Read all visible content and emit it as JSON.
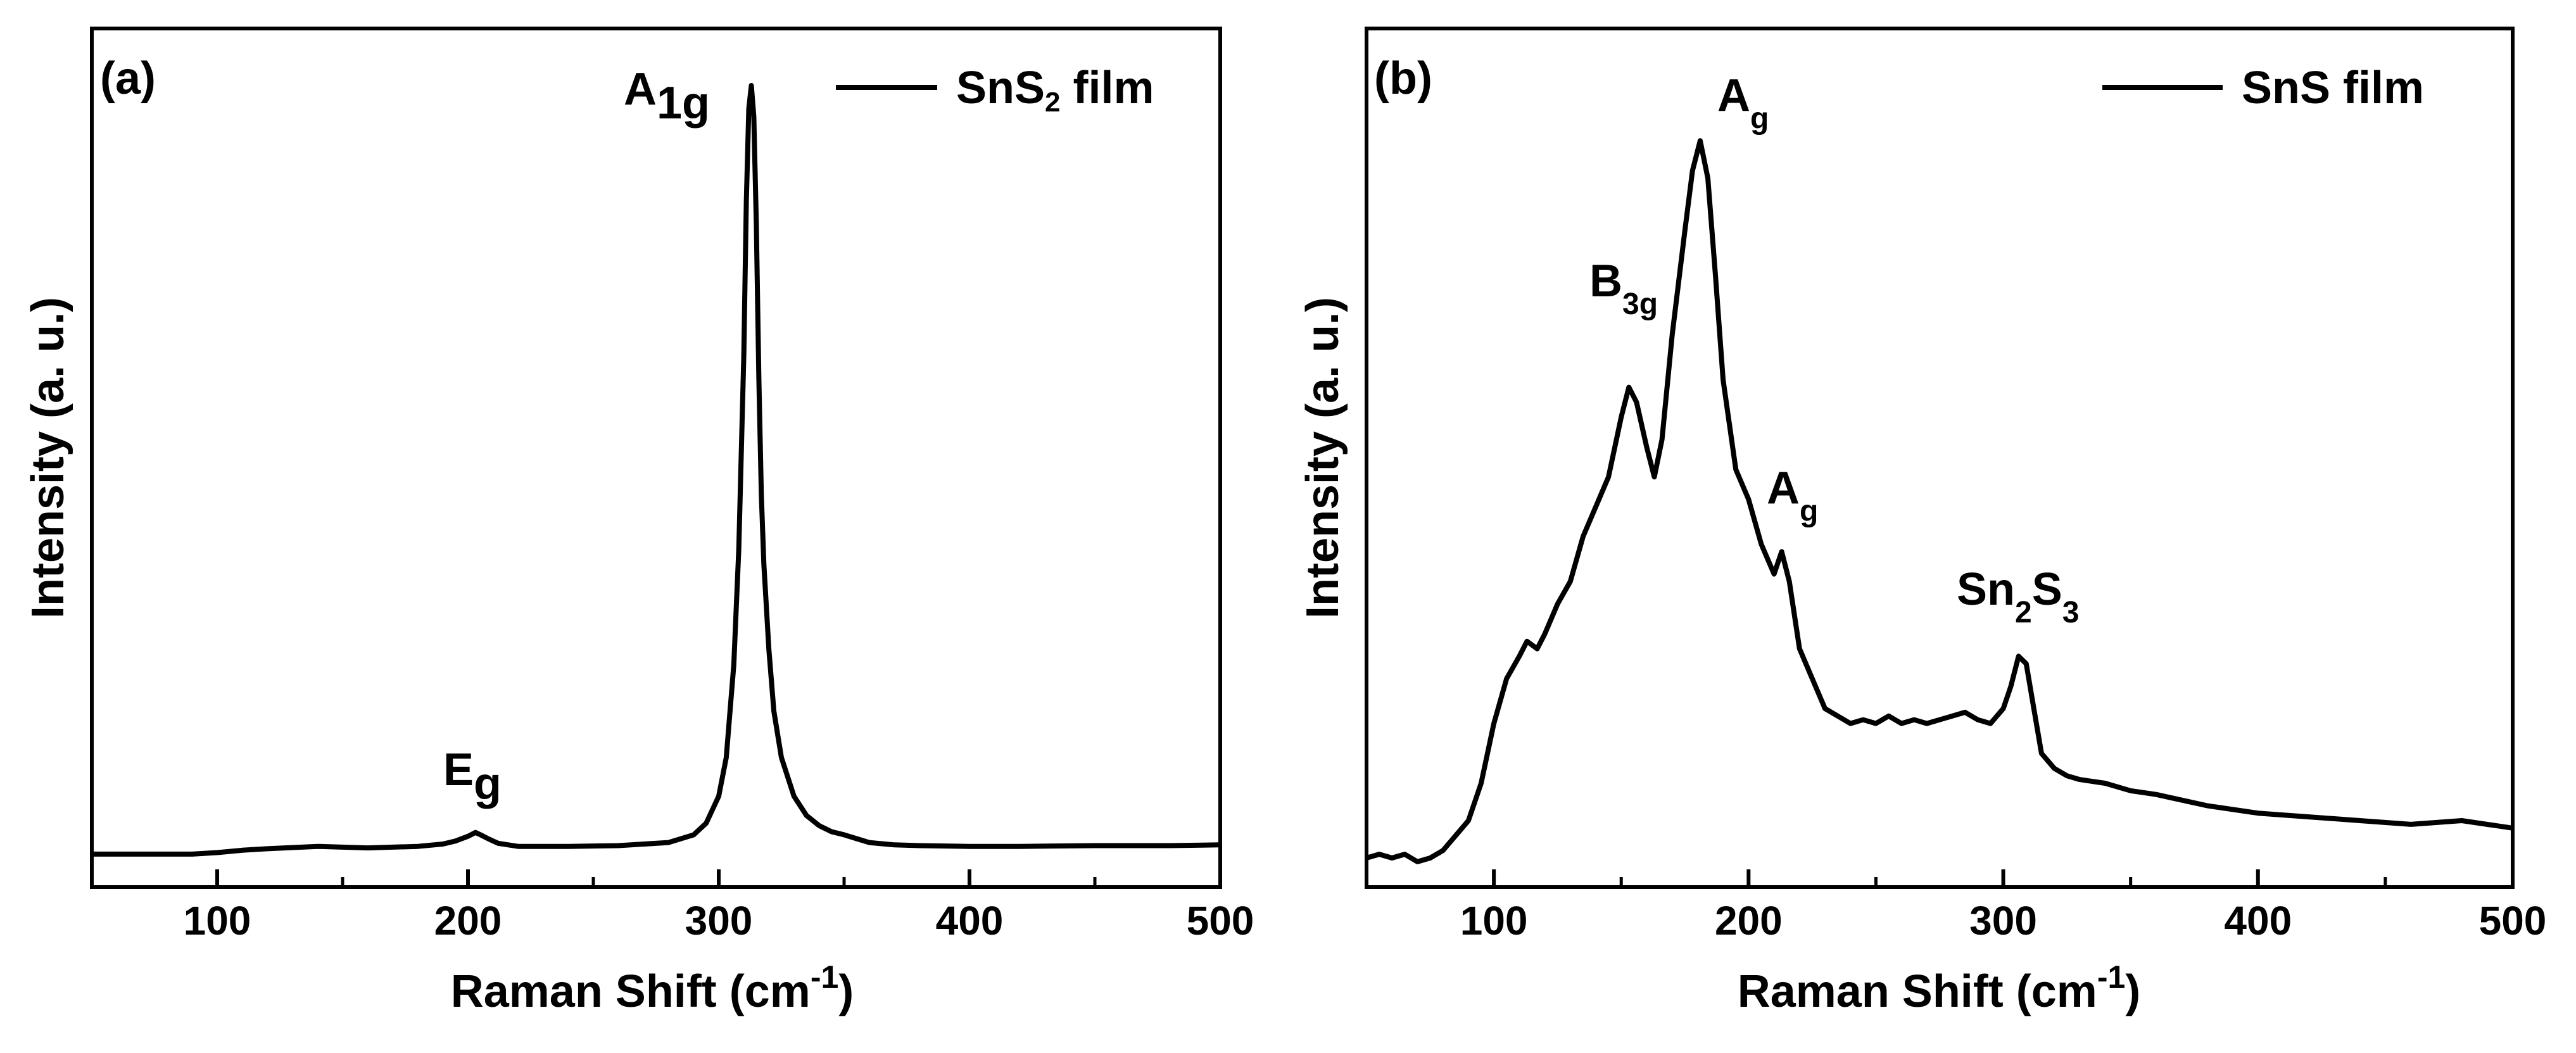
{
  "chart_data": [
    {
      "type": "line",
      "panel_label": "(a)",
      "xlabel": {
        "main": "Raman Shift (cm",
        "sup": "-1",
        "close": ")"
      },
      "ylabel": "Intensity (a. u.)",
      "xlim": [
        50,
        500
      ],
      "ylim": [
        0,
        100
      ],
      "xticks": [
        100,
        200,
        300,
        400,
        500
      ],
      "legend": {
        "position": "top-right",
        "label": {
          "main": "SnS",
          "sub": "2",
          "rest": " film"
        }
      },
      "series": [
        {
          "name": "SnS2 film",
          "x": [
            50,
            90,
            100,
            110,
            120,
            140,
            160,
            180,
            190,
            195,
            200,
            203,
            205,
            208,
            212,
            220,
            240,
            260,
            280,
            290,
            295,
            300,
            303,
            306,
            308,
            310,
            311,
            312,
            313,
            314,
            315,
            316,
            317,
            318,
            320,
            322,
            325,
            330,
            335,
            340,
            345,
            350,
            355,
            360,
            370,
            380,
            400,
            420,
            450,
            480,
            500
          ],
          "y": [
            0.5,
            0.5,
            0.7,
            1.0,
            1.2,
            1.5,
            1.3,
            1.5,
            1.8,
            2.2,
            2.8,
            3.3,
            3.0,
            2.5,
            1.9,
            1.5,
            1.5,
            1.6,
            2.0,
            3.0,
            4.5,
            8.0,
            13,
            25,
            40,
            65,
            85,
            97,
            100,
            96,
            82,
            62,
            47,
            38,
            27,
            19,
            13,
            8.0,
            5.5,
            4.2,
            3.4,
            3.0,
            2.5,
            2.0,
            1.7,
            1.6,
            1.5,
            1.5,
            1.6,
            1.6,
            1.7
          ]
        }
      ],
      "annotations": [
        {
          "main": "A",
          "sub": "1g",
          "x": 312,
          "y": 100
        },
        {
          "main": "E",
          "sub": "g",
          "x": 204,
          "y": 3.3
        }
      ]
    },
    {
      "type": "line",
      "panel_label": "(b)",
      "xlabel": {
        "main": "Raman Shift (cm",
        "sup": "-1",
        "close": ")"
      },
      "ylabel": "Intensity (a. u.)",
      "xlim": [
        50,
        500
      ],
      "ylim": [
        0,
        100
      ],
      "xticks": [
        100,
        200,
        300,
        400,
        500
      ],
      "legend": {
        "position": "top-right",
        "label": {
          "main": "SnS film",
          "sub": "",
          "rest": ""
        }
      },
      "series": [
        {
          "name": "SnS film",
          "x": [
            50,
            55,
            60,
            65,
            70,
            75,
            80,
            85,
            90,
            95,
            100,
            105,
            110,
            113,
            117,
            120,
            125,
            130,
            135,
            140,
            145,
            150,
            153,
            156,
            160,
            163,
            166,
            170,
            175,
            178,
            181,
            184,
            187,
            190,
            195,
            200,
            205,
            210,
            213,
            216,
            220,
            225,
            230,
            235,
            240,
            245,
            250,
            255,
            260,
            265,
            270,
            275,
            280,
            285,
            290,
            295,
            300,
            303,
            306,
            309,
            312,
            315,
            320,
            325,
            330,
            340,
            350,
            360,
            380,
            400,
            420,
            440,
            460,
            480,
            500
          ],
          "y": [
            0,
            0.5,
            0,
            0.5,
            -0.5,
            0,
            1,
            3,
            5,
            10,
            18,
            24,
            27,
            29,
            28,
            30,
            34,
            37,
            43,
            47,
            51,
            59,
            63,
            61,
            55,
            51,
            56,
            70,
            84,
            92,
            96,
            91,
            78,
            64,
            52,
            48,
            42,
            38,
            41,
            37,
            28,
            24,
            20,
            19,
            18,
            18.5,
            18,
            19,
            18,
            18.5,
            18,
            18.5,
            19,
            19.5,
            18.5,
            18,
            20,
            23,
            27,
            26,
            20,
            14,
            12,
            11,
            10.5,
            10,
            9,
            8.5,
            7,
            6,
            5.5,
            5,
            4.5,
            5,
            4
          ]
        }
      ],
      "annotations": [
        {
          "main": "A",
          "sub": "g",
          "x": 181,
          "y": 96
        },
        {
          "main": "B",
          "sub": "3g",
          "x": 153,
          "y": 63
        },
        {
          "main": "A",
          "sub": "g",
          "x": 211,
          "y": 42
        },
        {
          "main": "Sn",
          "sub": "2",
          "main2": "S",
          "sub2": "3",
          "x": 306,
          "y": 27
        }
      ]
    }
  ]
}
